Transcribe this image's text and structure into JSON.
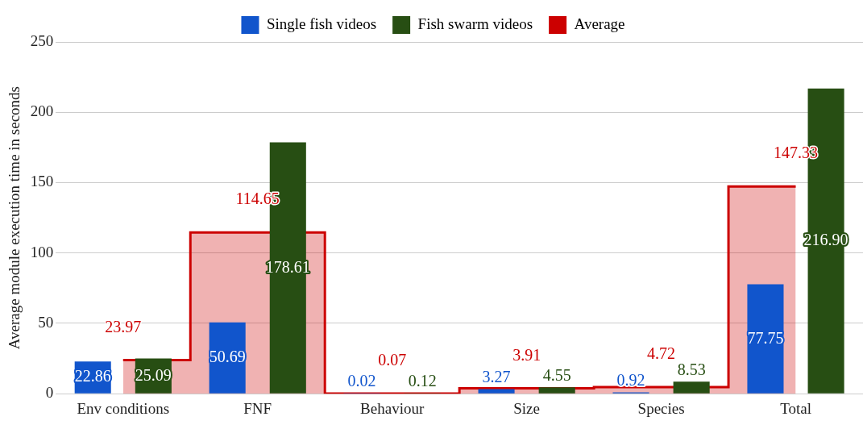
{
  "chart_data": {
    "type": "bar",
    "ylabel": "Average module execution time in seconds",
    "categories": [
      "Env conditions",
      "FNF",
      "Behaviour",
      "Size",
      "Species",
      "Total"
    ],
    "series": [
      {
        "name": "Single fish videos",
        "color": "#1155cc",
        "values": [
          22.86,
          50.69,
          0.02,
          3.27,
          0.92,
          77.75
        ],
        "value_labels": [
          "22.86",
          "50.69",
          "0.02",
          "3.27",
          "0.92",
          "77.75"
        ]
      },
      {
        "name": "Fish swarm videos",
        "color": "#274e13",
        "values": [
          25.09,
          178.61,
          0.12,
          4.55,
          8.53,
          216.9
        ],
        "value_labels": [
          "25.09",
          "178.61",
          "0.12",
          "4.55",
          "8.53",
          "216.90"
        ]
      },
      {
        "name": "Average",
        "type": "area",
        "color": "#cc0000",
        "values": [
          23.97,
          114.65,
          0.07,
          3.91,
          4.72,
          147.33
        ],
        "value_labels": [
          "23.97",
          "114.65",
          "0.07",
          "3.91",
          "4.72",
          "147.33"
        ]
      }
    ],
    "ylim": [
      0,
      250
    ],
    "yticks": [
      0,
      50,
      100,
      150,
      200,
      250
    ],
    "grid": "y",
    "legend": "top"
  }
}
